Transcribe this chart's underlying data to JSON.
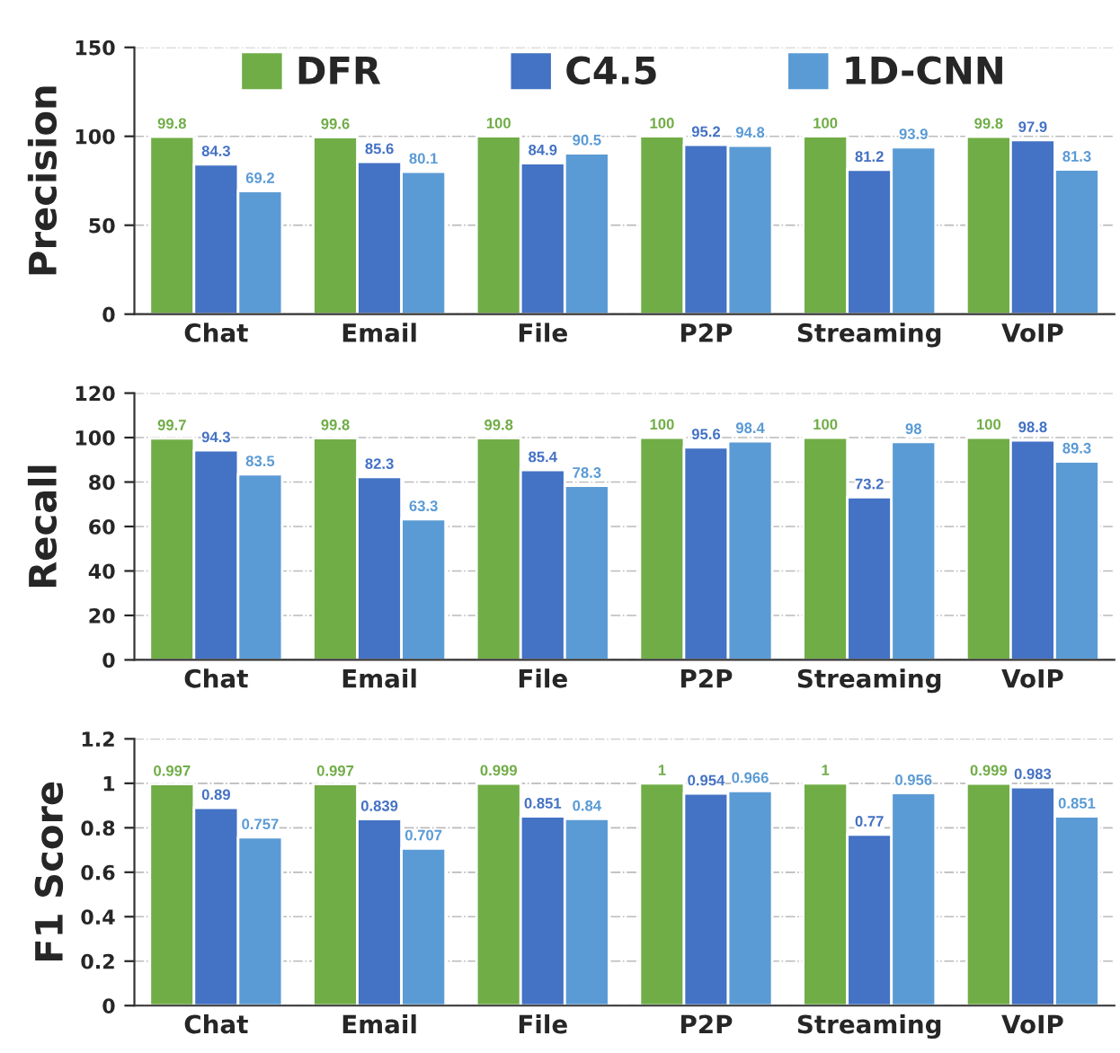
{
  "chart_data": [
    {
      "type": "bar",
      "ylabel": "Precision",
      "categories": [
        "Chat",
        "Email",
        "File",
        "P2P",
        "Streaming",
        "VoIP"
      ],
      "ylim": [
        0,
        150
      ],
      "yticks": [
        0,
        50,
        100,
        150
      ],
      "grid": "y",
      "legend": "top",
      "data_labels": true,
      "series": [
        {
          "name": "DFR",
          "color": "#70ad47",
          "values": [
            99.8,
            99.6,
            100,
            100,
            100,
            99.8
          ]
        },
        {
          "name": "C4.5",
          "color": "#4472c4",
          "values": [
            84.3,
            85.6,
            84.9,
            95.2,
            81.2,
            97.9
          ]
        },
        {
          "name": "1D-CNN",
          "color": "#5b9bd5",
          "values": [
            69.2,
            80.1,
            90.5,
            94.8,
            93.9,
            81.3
          ]
        }
      ]
    },
    {
      "type": "bar",
      "ylabel": "Recall",
      "categories": [
        "Chat",
        "Email",
        "File",
        "P2P",
        "Streaming",
        "VoIP"
      ],
      "ylim": [
        0,
        120
      ],
      "yticks": [
        0,
        20,
        40,
        60,
        80,
        100,
        120
      ],
      "grid": "y",
      "data_labels": true,
      "series": [
        {
          "color": "#70ad47",
          "values": [
            99.7,
            99.8,
            99.8,
            100,
            100,
            100
          ]
        },
        {
          "color": "#4472c4",
          "values": [
            94.3,
            82.3,
            85.4,
            95.6,
            73.2,
            98.8
          ]
        },
        {
          "color": "#5b9bd5",
          "values": [
            83.5,
            63.3,
            78.3,
            98.4,
            98,
            89.3
          ]
        }
      ]
    },
    {
      "type": "bar",
      "ylabel": "F1 Score",
      "categories": [
        "Chat",
        "Email",
        "File",
        "P2P",
        "Streaming",
        "VoIP"
      ],
      "ylim": [
        0,
        1.2
      ],
      "yticks": [
        0,
        0.2,
        0.4,
        0.6,
        0.8,
        1,
        1.2
      ],
      "grid": "y",
      "data_labels": true,
      "series": [
        {
          "color": "#70ad47",
          "values": [
            0.997,
            0.997,
            0.999,
            1,
            1,
            0.999
          ]
        },
        {
          "color": "#4472c4",
          "values": [
            0.89,
            0.839,
            0.851,
            0.954,
            0.77,
            0.983
          ]
        },
        {
          "color": "#5b9bd5",
          "values": [
            0.757,
            0.707,
            0.84,
            0.966,
            0.956,
            0.851
          ]
        }
      ]
    }
  ]
}
